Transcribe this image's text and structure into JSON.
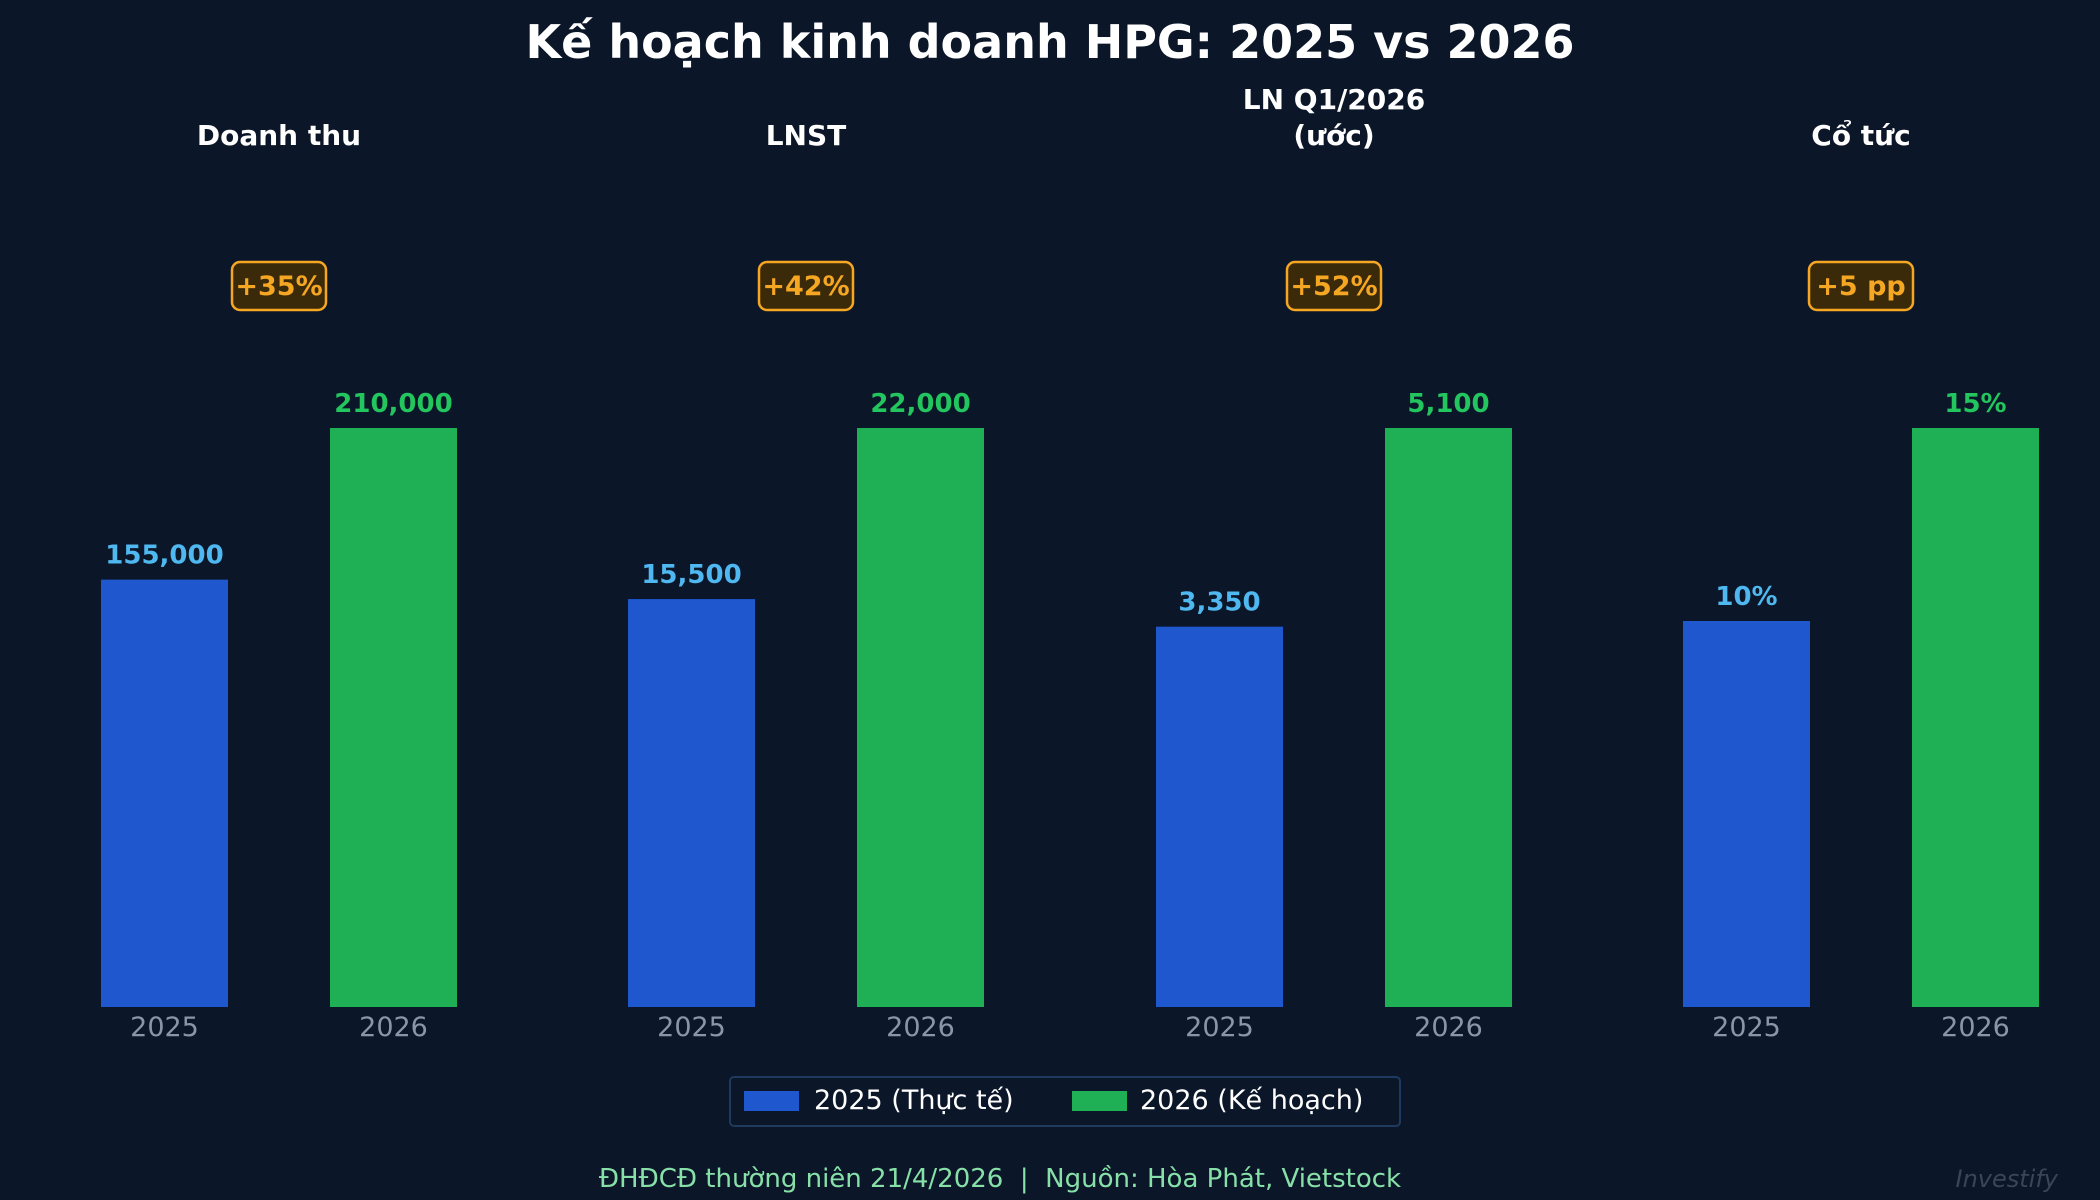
{
  "chart_data": {
    "type": "bar",
    "title": "Kế hoạch kinh doanh HPG: 2025 vs 2026",
    "categories": [
      "2025",
      "2026"
    ],
    "legend": {
      "placement": "bottom-center",
      "entries": [
        {
          "label": "2025 (Thực tế)",
          "color": "#1f57cf"
        },
        {
          "label": "2026 (Kế hoạch)",
          "color": "#1faf55"
        }
      ]
    },
    "panels": [
      {
        "title": [
          "Doanh thu"
        ],
        "values": [
          155000,
          210000
        ],
        "labels": [
          "155,000",
          "210,000"
        ],
        "change": "+35%"
      },
      {
        "title": [
          "LNST"
        ],
        "values": [
          15500,
          22000
        ],
        "labels": [
          "15,500",
          "22,000"
        ],
        "change": "+42%"
      },
      {
        "title": [
          "LN Q1/2026",
          "(ước)"
        ],
        "values": [
          3350,
          5100
        ],
        "labels": [
          "3,350",
          "5,100"
        ],
        "change": "+52%"
      },
      {
        "title": [
          "Cổ tức"
        ],
        "values": [
          10,
          15
        ],
        "labels": [
          "10%",
          "15%"
        ],
        "change": "+5 pp"
      }
    ],
    "colors": {
      "bar_2025": "#1f57cf",
      "bar_2026": "#1faf55",
      "label_2025": "#4fb8f0",
      "label_2026": "#22c55e",
      "badge": "#f5a623",
      "background": "#0b1628"
    },
    "grid": false
  },
  "footer": {
    "source": "ĐHĐCĐ thường niên 21/4/2026  |  Nguồn: Hòa Phát, Vietstock",
    "brand": "Investify"
  }
}
